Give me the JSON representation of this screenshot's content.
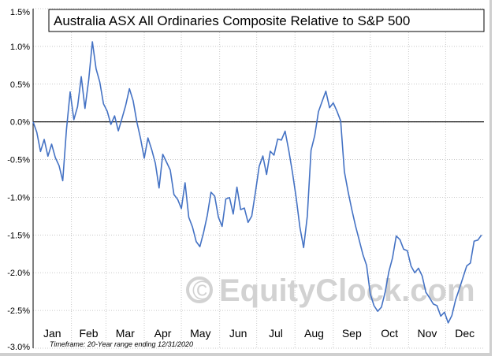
{
  "chart_data": {
    "type": "line",
    "title": "Australia ASX All Ordinaries Composite Relative to S&P 500",
    "ylim": [
      -3.0,
      1.5
    ],
    "yticks": [
      1.5,
      1.0,
      0.5,
      0.0,
      -0.5,
      -1.0,
      -1.5,
      -2.0,
      -2.5,
      -3.0
    ],
    "ytick_labels": [
      "1.5%",
      "1.0%",
      "0.5%",
      "0.0%",
      "-0.5%",
      "-1.0%",
      "-1.5%",
      "-2.0%",
      "-2.5%",
      "-3.0%"
    ],
    "x_labels": [
      "Jan",
      "Feb",
      "Mar",
      "Apr",
      "May",
      "Jun",
      "Jul",
      "Aug",
      "Sep",
      "Oct",
      "Nov",
      "Dec"
    ],
    "grid": true,
    "series": [
      {
        "color": "#4472c4",
        "x_day": [
          1,
          4,
          7,
          10,
          13,
          16,
          19,
          22,
          25,
          28,
          31,
          34,
          37,
          40,
          43,
          46,
          49,
          52,
          55,
          58,
          61,
          64,
          67,
          70,
          73,
          76,
          79,
          82,
          85,
          88,
          91,
          94,
          97,
          100,
          103,
          106,
          109,
          112,
          115,
          118,
          121,
          124,
          127,
          130,
          133,
          136,
          139,
          142,
          145,
          148,
          151,
          154,
          157,
          160,
          163,
          166,
          169,
          172,
          175,
          178,
          181,
          184,
          187,
          190,
          193,
          196,
          199,
          202,
          205,
          208,
          211,
          214,
          217,
          220,
          223,
          226,
          229,
          232,
          235,
          238,
          241,
          244,
          247,
          250,
          253,
          256,
          259,
          262,
          265,
          268,
          271,
          274,
          277,
          280,
          283,
          286,
          289,
          292,
          295,
          298,
          301,
          304,
          307,
          310,
          313,
          316,
          319,
          322,
          325,
          328,
          331,
          334,
          337,
          340,
          343,
          346,
          349,
          352,
          355,
          358,
          361,
          364
        ],
        "values": [
          0.0,
          -0.25,
          -0.4,
          -0.3,
          -0.5,
          -0.35,
          -0.55,
          -0.6,
          -0.7,
          -0.05,
          0.4,
          0.05,
          0.3,
          0.6,
          0.2,
          0.5,
          0.95,
          0.65,
          0.45,
          0.2,
          0.05,
          -0.1,
          0.0,
          -0.05,
          0.15,
          0.3,
          0.5,
          0.4,
          0.1,
          -0.15,
          -0.6,
          -0.3,
          -0.4,
          -0.6,
          -0.9,
          -0.5,
          -0.65,
          -0.75,
          -0.9,
          -1.0,
          -1.1,
          -0.8,
          -1.2,
          -1.3,
          -1.55,
          -1.75,
          -1.5,
          -1.3,
          -0.95,
          -1.0,
          -1.3,
          -1.4,
          -1.0,
          -0.95,
          -1.15,
          -0.85,
          -1.1,
          -1.05,
          -1.25,
          -1.15,
          -0.95,
          -0.6,
          -0.55,
          -0.7,
          -0.4,
          -0.45,
          -0.3,
          -0.15,
          -0.05,
          -0.3,
          -0.6,
          -0.95,
          -1.3,
          -1.55,
          -1.15,
          -0.45,
          -0.2,
          0.05,
          0.25,
          0.4,
          0.1,
          0.2,
          0.25,
          0.1,
          -0.55,
          -0.85,
          -1.1,
          -1.3,
          -1.5,
          -1.75,
          -2.0,
          -2.3,
          -2.5,
          -2.6,
          -2.55,
          -2.35,
          -2.1,
          -1.7,
          -1.4,
          -1.5,
          -1.6,
          -1.7,
          -1.8,
          -1.9,
          -2.0,
          -2.15,
          -2.3,
          -2.4,
          -2.5,
          -2.55,
          -2.6,
          -2.6,
          -2.55,
          -2.45,
          -2.3,
          -2.15,
          -2.0,
          -1.9,
          -1.8,
          -1.7,
          -1.6,
          -1.5
        ]
      }
    ]
  },
  "watermark": {
    "text": "EquityClock.com",
    "symbol": "©"
  },
  "timeframe_note": "Timeframe: 20-Year range ending 12/31/2020"
}
